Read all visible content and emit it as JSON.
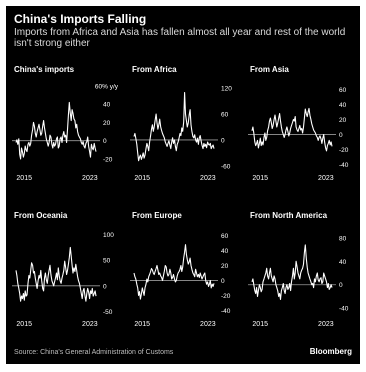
{
  "header": {
    "title": "China's Imports Falling",
    "subtitle": "Imports from Africa and Asia has fallen almost all year and rest of the world isn't strong either"
  },
  "footer": {
    "source": "Source: China's General Administration of Customs",
    "brand": "Bloomberg"
  },
  "colors": {
    "background": "#000000",
    "line": "#ffffff",
    "zero_line": "#9a9a9a",
    "text": "#ffffff"
  },
  "chart_data": [
    {
      "type": "line",
      "title": "China's imports",
      "unit_label": "60% y/y",
      "ylim": [
        -30,
        60
      ],
      "yticks": [
        -20,
        0,
        20,
        40
      ],
      "xticks": [
        "2015",
        "2023"
      ],
      "x_start": 2014.0,
      "x_end": 2023.75,
      "series": [
        {
          "values": [
            -2,
            1,
            -4,
            2,
            -15,
            -20,
            -8,
            -12,
            -18,
            -14,
            -6,
            -10,
            -12,
            -4,
            -2,
            -6,
            -3,
            6,
            12,
            20,
            16,
            8,
            4,
            10,
            14,
            18,
            12,
            6,
            8,
            16,
            22,
            14,
            8,
            2,
            -2,
            -6,
            -2,
            6,
            4,
            -4,
            -8,
            -2,
            -6,
            -4,
            2,
            4,
            -8,
            -6,
            2,
            4,
            -2,
            6,
            10,
            4,
            6,
            -2,
            12,
            28,
            42,
            30,
            22,
            34,
            30,
            24,
            22,
            14,
            18,
            10,
            6,
            4,
            2,
            -2,
            -4,
            -1,
            -6,
            -8,
            -3,
            -1,
            4,
            -6,
            -12,
            -18,
            -4,
            -8,
            -10,
            -3,
            -8,
            -12
          ]
        }
      ]
    },
    {
      "type": "line",
      "title": "From Africa",
      "ylim": [
        -65,
        125
      ],
      "yticks": [
        -60,
        0,
        60,
        120
      ],
      "xticks": [
        "2015",
        "2023"
      ],
      "x_start": 2014.0,
      "x_end": 2023.75,
      "series": [
        {
          "values": [
            8,
            15,
            4,
            -10,
            -30,
            -48,
            -40,
            -35,
            -45,
            -38,
            -30,
            -42,
            -35,
            -20,
            -8,
            -15,
            -25,
            -5,
            10,
            25,
            35,
            20,
            30,
            45,
            60,
            40,
            25,
            35,
            48,
            30,
            22,
            15,
            10,
            5,
            -5,
            -10,
            -15,
            -8,
            -2,
            -12,
            -20,
            -5,
            5,
            -8,
            0,
            -15,
            -25,
            -10,
            -5,
            5,
            15,
            10,
            28,
            20,
            42,
            110,
            60,
            45,
            30,
            40,
            58,
            70,
            35,
            20,
            8,
            5,
            12,
            0,
            -5,
            4,
            -10,
            5,
            10,
            -2,
            -12,
            -20,
            -8,
            -15,
            -10,
            -18,
            -5,
            -10,
            -12,
            -8,
            -20,
            -15,
            -12,
            -20
          ]
        }
      ]
    },
    {
      "type": "line",
      "title": "From Asia",
      "ylim": [
        -45,
        65
      ],
      "yticks": [
        -40,
        -20,
        0,
        20,
        40,
        60
      ],
      "xticks": [
        "2015",
        "2023"
      ],
      "x_start": 2014.0,
      "x_end": 2023.75,
      "series": [
        {
          "values": [
            5,
            10,
            2,
            -10,
            -15,
            -12,
            -8,
            -18,
            -12,
            -5,
            -15,
            -10,
            -14,
            -4,
            2,
            -8,
            -4,
            5,
            10,
            18,
            22,
            16,
            8,
            12,
            20,
            26,
            18,
            10,
            15,
            22,
            28,
            18,
            10,
            4,
            0,
            -4,
            0,
            6,
            10,
            4,
            -2,
            2,
            8,
            12,
            16,
            20,
            18,
            24,
            10,
            6,
            4,
            8,
            12,
            6,
            8,
            2,
            10,
            22,
            34,
            28,
            24,
            30,
            35,
            26,
            20,
            14,
            10,
            6,
            4,
            2,
            -2,
            -4,
            -8,
            -4,
            -2,
            -6,
            -12,
            -5,
            0,
            -10,
            -18,
            -22,
            -15,
            -12,
            -8,
            -14,
            -10,
            -16
          ]
        }
      ]
    },
    {
      "type": "line",
      "title": "From Oceania",
      "ylim": [
        -55,
        105
      ],
      "yticks": [
        -50,
        0,
        50,
        100
      ],
      "xticks": [
        "2015",
        "2023"
      ],
      "x_start": 2014.0,
      "x_end": 2023.75,
      "series": [
        {
          "values": [
            30,
            20,
            5,
            -5,
            -15,
            -30,
            -20,
            -25,
            -15,
            -28,
            -10,
            -20,
            -18,
            5,
            20,
            15,
            30,
            45,
            40,
            25,
            28,
            15,
            5,
            -5,
            10,
            20,
            15,
            30,
            10,
            -5,
            -10,
            15,
            25,
            12,
            5,
            20,
            30,
            40,
            22,
            10,
            5,
            0,
            8,
            15,
            25,
            12,
            35,
            20,
            10,
            5,
            15,
            22,
            30,
            48,
            35,
            22,
            30,
            42,
            55,
            75,
            58,
            40,
            25,
            35,
            28,
            42,
            30,
            18,
            10,
            5,
            -5,
            -15,
            -25,
            -10,
            -5,
            -20,
            -30,
            -15,
            -5,
            -12,
            -25,
            -10,
            -15,
            -5,
            -20,
            -15,
            -10,
            -20
          ]
        }
      ]
    },
    {
      "type": "line",
      "title": "From Europe",
      "ylim": [
        -45,
        65
      ],
      "yticks": [
        -40,
        -20,
        0,
        20,
        40,
        60
      ],
      "xticks": [
        "2015",
        "2023"
      ],
      "x_start": 2014.0,
      "x_end": 2023.75,
      "series": [
        {
          "values": [
            10,
            5,
            2,
            -5,
            -10,
            -20,
            -15,
            -25,
            -18,
            -10,
            -15,
            -20,
            -10,
            -5,
            2,
            -2,
            5,
            8,
            12,
            16,
            14,
            10,
            8,
            12,
            16,
            20,
            14,
            8,
            10,
            6,
            4,
            0,
            6,
            12,
            20,
            18,
            10,
            6,
            8,
            15,
            10,
            2,
            4,
            8,
            2,
            -2,
            0,
            6,
            10,
            12,
            15,
            20,
            12,
            18,
            30,
            38,
            48,
            35,
            28,
            22,
            25,
            30,
            20,
            15,
            10,
            8,
            5,
            15,
            10,
            5,
            8,
            4,
            10,
            6,
            2,
            5,
            8,
            10,
            0,
            -5,
            -2,
            -8,
            -5,
            0,
            -10,
            -5,
            -8,
            -4
          ]
        }
      ]
    },
    {
      "type": "line",
      "title": "From North America",
      "ylim": [
        -50,
        90
      ],
      "yticks": [
        -40,
        0,
        40,
        80
      ],
      "xticks": [
        "2015",
        "2023"
      ],
      "x_start": 2014.0,
      "x_end": 2023.75,
      "series": [
        {
          "values": [
            5,
            10,
            0,
            -10,
            -15,
            -5,
            -20,
            -10,
            0,
            -5,
            -12,
            -8,
            5,
            10,
            15,
            20,
            28,
            15,
            10,
            20,
            28,
            15,
            10,
            5,
            15,
            10,
            0,
            -5,
            -10,
            -20,
            -15,
            -25,
            -10,
            -5,
            2,
            -10,
            -15,
            -5,
            0,
            -8,
            -5,
            2,
            -10,
            5,
            15,
            28,
            10,
            20,
            40,
            30,
            20,
            15,
            10,
            20,
            25,
            28,
            35,
            55,
            68,
            45,
            30,
            20,
            15,
            10,
            5,
            0,
            2,
            -5,
            10,
            5,
            15,
            20,
            8,
            5,
            10,
            12,
            2,
            5,
            20,
            15,
            10,
            5,
            -5,
            2,
            -8,
            -5,
            0,
            -5
          ]
        }
      ]
    }
  ]
}
